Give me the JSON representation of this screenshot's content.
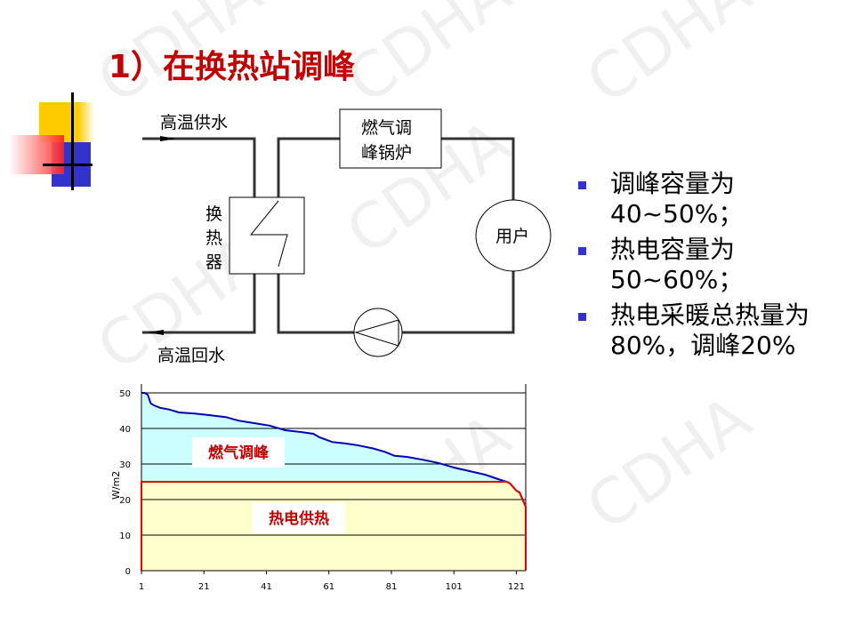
{
  "title": "1）在换热站调峰",
  "watermark": "CDHA",
  "diagram": {
    "supply_label": "高温供水",
    "return_label": "高温回水",
    "exchanger_label": [
      "换",
      "热",
      "器"
    ],
    "boiler_label": [
      "燃气调",
      "峰锅炉"
    ],
    "user_label": "用户",
    "pump_icon": "pump-icon"
  },
  "bullets": [
    "调峰容量为40~50%；",
    "热电容量为50~60%；",
    "热电采暖总热量为80%，调峰20%"
  ],
  "colors": {
    "title": "#c00000",
    "bullet": "#3333cc",
    "load_line": "#0000b0",
    "base_line": "#e00000",
    "peak_fill": "#ccffff",
    "base_fill": "#ffffcc"
  },
  "chart_data": {
    "type": "area",
    "ylabel": "W/m2",
    "ylim": [
      0,
      50
    ],
    "xlim": [
      1,
      124
    ],
    "yticks": [
      "0",
      "10",
      "20",
      "30",
      "40",
      "50"
    ],
    "xticks": [
      "1",
      "21",
      "41",
      "61",
      "81",
      "101",
      "121"
    ],
    "grid": "horizontal",
    "annotations": [
      "燃气调峰",
      "热电供热"
    ],
    "load_curve": [
      [
        1,
        50
      ],
      [
        2,
        50
      ],
      [
        3,
        49.5
      ],
      [
        4,
        47
      ],
      [
        5,
        46.5
      ],
      [
        7,
        45.8
      ],
      [
        10,
        45.3
      ],
      [
        13,
        44.5
      ],
      [
        18,
        44.2
      ],
      [
        22,
        43.8
      ],
      [
        28,
        43.2
      ],
      [
        32,
        42.2
      ],
      [
        37,
        41.5
      ],
      [
        42,
        40.8
      ],
      [
        47,
        39.5
      ],
      [
        52,
        39
      ],
      [
        56,
        38.5
      ],
      [
        58,
        37.5
      ],
      [
        62,
        36.2
      ],
      [
        66,
        35.8
      ],
      [
        70,
        35.3
      ],
      [
        75,
        34.4
      ],
      [
        79,
        33.4
      ],
      [
        82,
        32.3
      ],
      [
        86,
        32
      ],
      [
        91,
        31.2
      ],
      [
        96,
        30.3
      ],
      [
        101,
        29
      ],
      [
        106,
        28
      ],
      [
        111,
        27
      ],
      [
        116,
        25.5
      ],
      [
        118,
        25
      ],
      [
        119,
        24.5
      ],
      [
        121,
        22.5
      ],
      [
        122,
        22
      ],
      [
        123,
        20
      ],
      [
        124,
        18
      ]
    ],
    "base_load": 25
  }
}
